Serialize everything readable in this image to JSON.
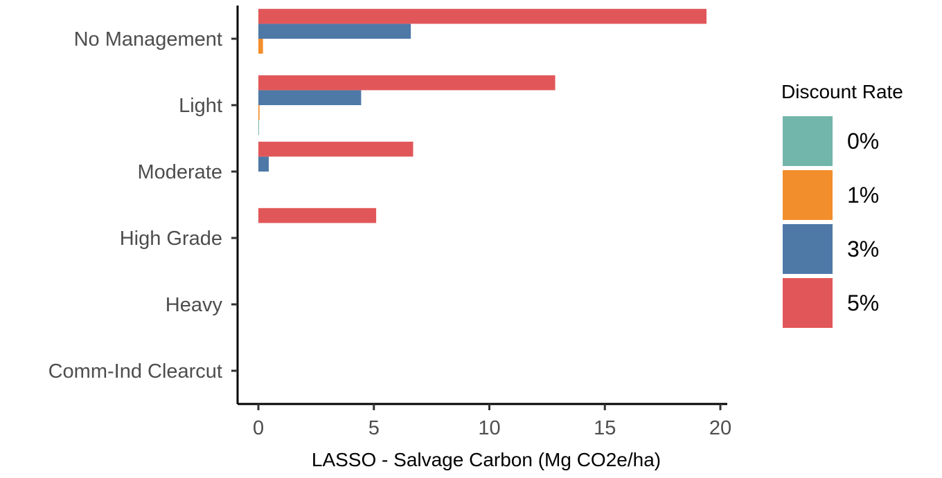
{
  "chart_data": {
    "type": "bar",
    "orientation": "horizontal",
    "title": "",
    "xlabel": "LASSO - Salvage Carbon (Mg CO2e/ha)",
    "ylabel": "",
    "xlim": [
      -0.9,
      20.3
    ],
    "x_ticks": [
      0,
      5,
      10,
      15,
      20
    ],
    "grid": false,
    "legend_position": "right",
    "categories": [
      "No Management",
      "Light",
      "Moderate",
      "High Grade",
      "Heavy",
      "Comm-Ind Clearcut"
    ],
    "series": [
      {
        "name": "0%",
        "color": "#72b5ab",
        "values": [
          0,
          0.03,
          0,
          0,
          0,
          0
        ]
      },
      {
        "name": "1%",
        "color": "#f28e2b",
        "values": [
          0.2,
          0.05,
          0,
          0,
          0,
          0
        ]
      },
      {
        "name": "3%",
        "color": "#4e79a7",
        "values": [
          6.6,
          4.45,
          0.45,
          0,
          0,
          0
        ]
      },
      {
        "name": "5%",
        "color": "#e15759",
        "values": [
          19.4,
          12.85,
          6.7,
          5.1,
          0,
          0
        ]
      }
    ],
    "legend": {
      "title": "Discount Rate",
      "entries": [
        "0%",
        "1%",
        "3%",
        "5%"
      ]
    }
  }
}
